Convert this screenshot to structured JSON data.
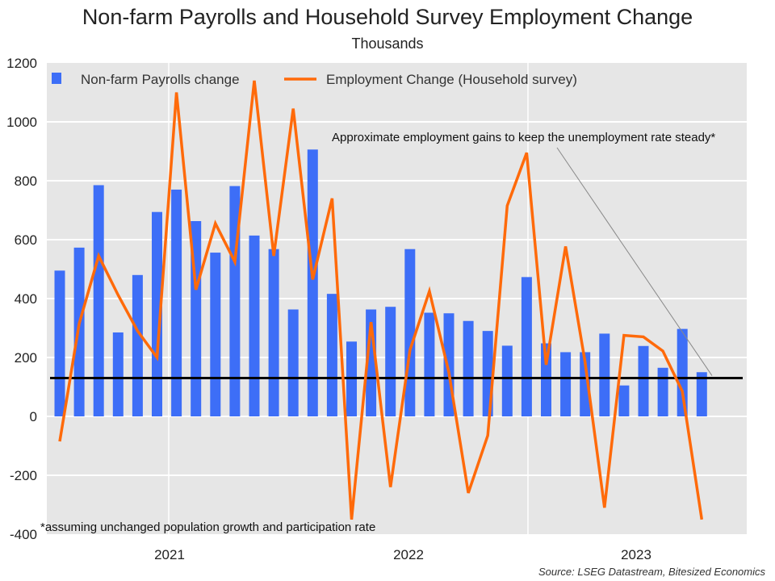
{
  "title": "Non-farm Payrolls and Household Survey Employment Change",
  "subtitle": "Thousands",
  "source": "Source: LSEG Datastream, Bitesized Economics",
  "colors": {
    "bars": "#3d6ef7",
    "line": "#ff6a0a",
    "reference": "#000000",
    "plot_bg": "#e6e6e6",
    "grid": "#ffffff"
  },
  "chart_data": {
    "type": "bar",
    "ylim": [
      -400,
      1200
    ],
    "yticks": [
      -400,
      -200,
      0,
      200,
      400,
      600,
      800,
      1000,
      1200
    ],
    "x_labels": [
      "2021",
      "2022",
      "2023"
    ],
    "grid": true,
    "legend_position": "top",
    "series": [
      {
        "name": "Non-farm Payrolls change",
        "type": "bar",
        "values": [
          495,
          573,
          785,
          285,
          480,
          694,
          770,
          663,
          556,
          782,
          614,
          568,
          363,
          906,
          416,
          254,
          363,
          372,
          568,
          352,
          350,
          324,
          290,
          240,
          473,
          248,
          218,
          218,
          281,
          105,
          239,
          165,
          297,
          150
        ]
      },
      {
        "name": "Employment Change (Household survey)",
        "type": "line",
        "values": [
          -85,
          315,
          545,
          412,
          290,
          200,
          1100,
          430,
          655,
          525,
          1140,
          545,
          1045,
          465,
          740,
          -350,
          320,
          -240,
          225,
          425,
          150,
          -260,
          -65,
          715,
          895,
          175,
          577,
          185,
          -310,
          275,
          270,
          222,
          85,
          -350
        ]
      }
    ],
    "reference_line": {
      "value": 130,
      "label": "Approximate employment gains to keep the unemployment rate steady*"
    },
    "footnote": "*assuming unchanged population growth and participation rate"
  }
}
